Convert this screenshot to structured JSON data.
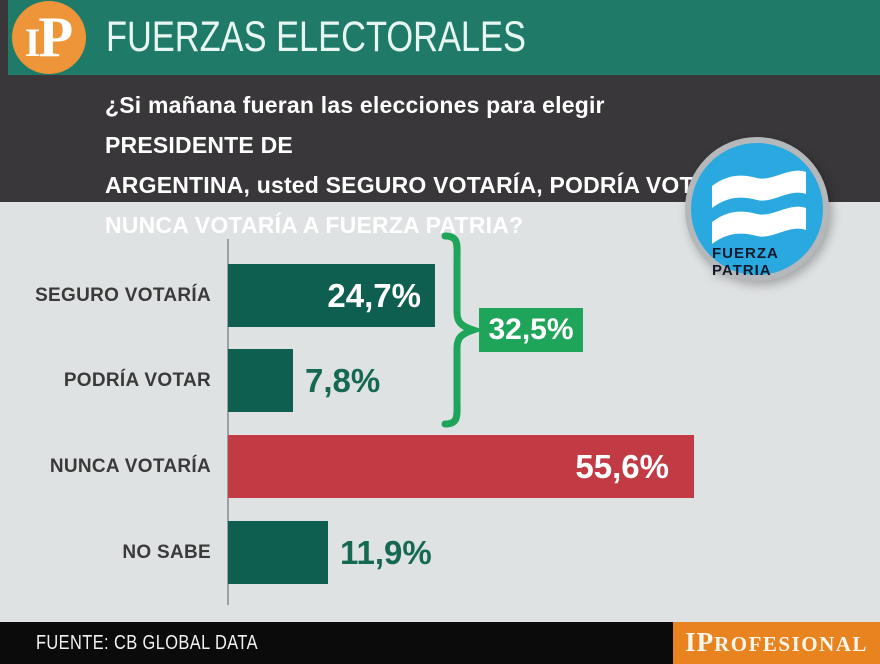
{
  "header": {
    "logo_text": "IP",
    "title": "FUERZAS ELECTORALES"
  },
  "question": {
    "lines": [
      "¿Si mañana fueran las elecciones para elegir PRESIDENTE DE",
      "ARGENTINA, usted SEGURO VOTARÍA, PODRÍA VOTAR O",
      "NUNCA VOTARÍA A FUERZA PATRIA?"
    ]
  },
  "badge": {
    "line1": "FUERZA",
    "line2": "PATRIA"
  },
  "chart_data": {
    "type": "bar",
    "orientation": "horizontal",
    "categories": [
      "SEGURO VOTARÍA",
      "PODRÍA VOTAR",
      "NUNCA VOTARÍA",
      "NO SABE"
    ],
    "values": [
      24.7,
      7.8,
      55.6,
      11.9
    ],
    "value_labels": [
      "24,7%",
      "7,8%",
      "55,6%",
      "11,9%"
    ],
    "bar_colors": [
      "#0e5f50",
      "#0e5f50",
      "#c23a44",
      "#0e5f50"
    ],
    "value_inside": [
      true,
      false,
      true,
      false
    ],
    "group_label": "32,5%",
    "group_of_bars": [
      0,
      1
    ],
    "xlim": [
      0,
      55.6
    ],
    "grid": false,
    "legend": false
  },
  "colors": {
    "accent_green": "#1ea55a",
    "badge_blue": "#2aa9e0",
    "badge_ring": "#b5b8ba",
    "bar_teal": "#0e5f50",
    "bar_red": "#c23a44",
    "header_teal": "#1f7a68",
    "logo_orange": "#ef9539",
    "footer_orange": "#e8831f"
  },
  "footer": {
    "source": "FUENTE: CB GLOBAL DATA",
    "brand_large": "IP",
    "brand_small": "ROFESIONAL"
  }
}
